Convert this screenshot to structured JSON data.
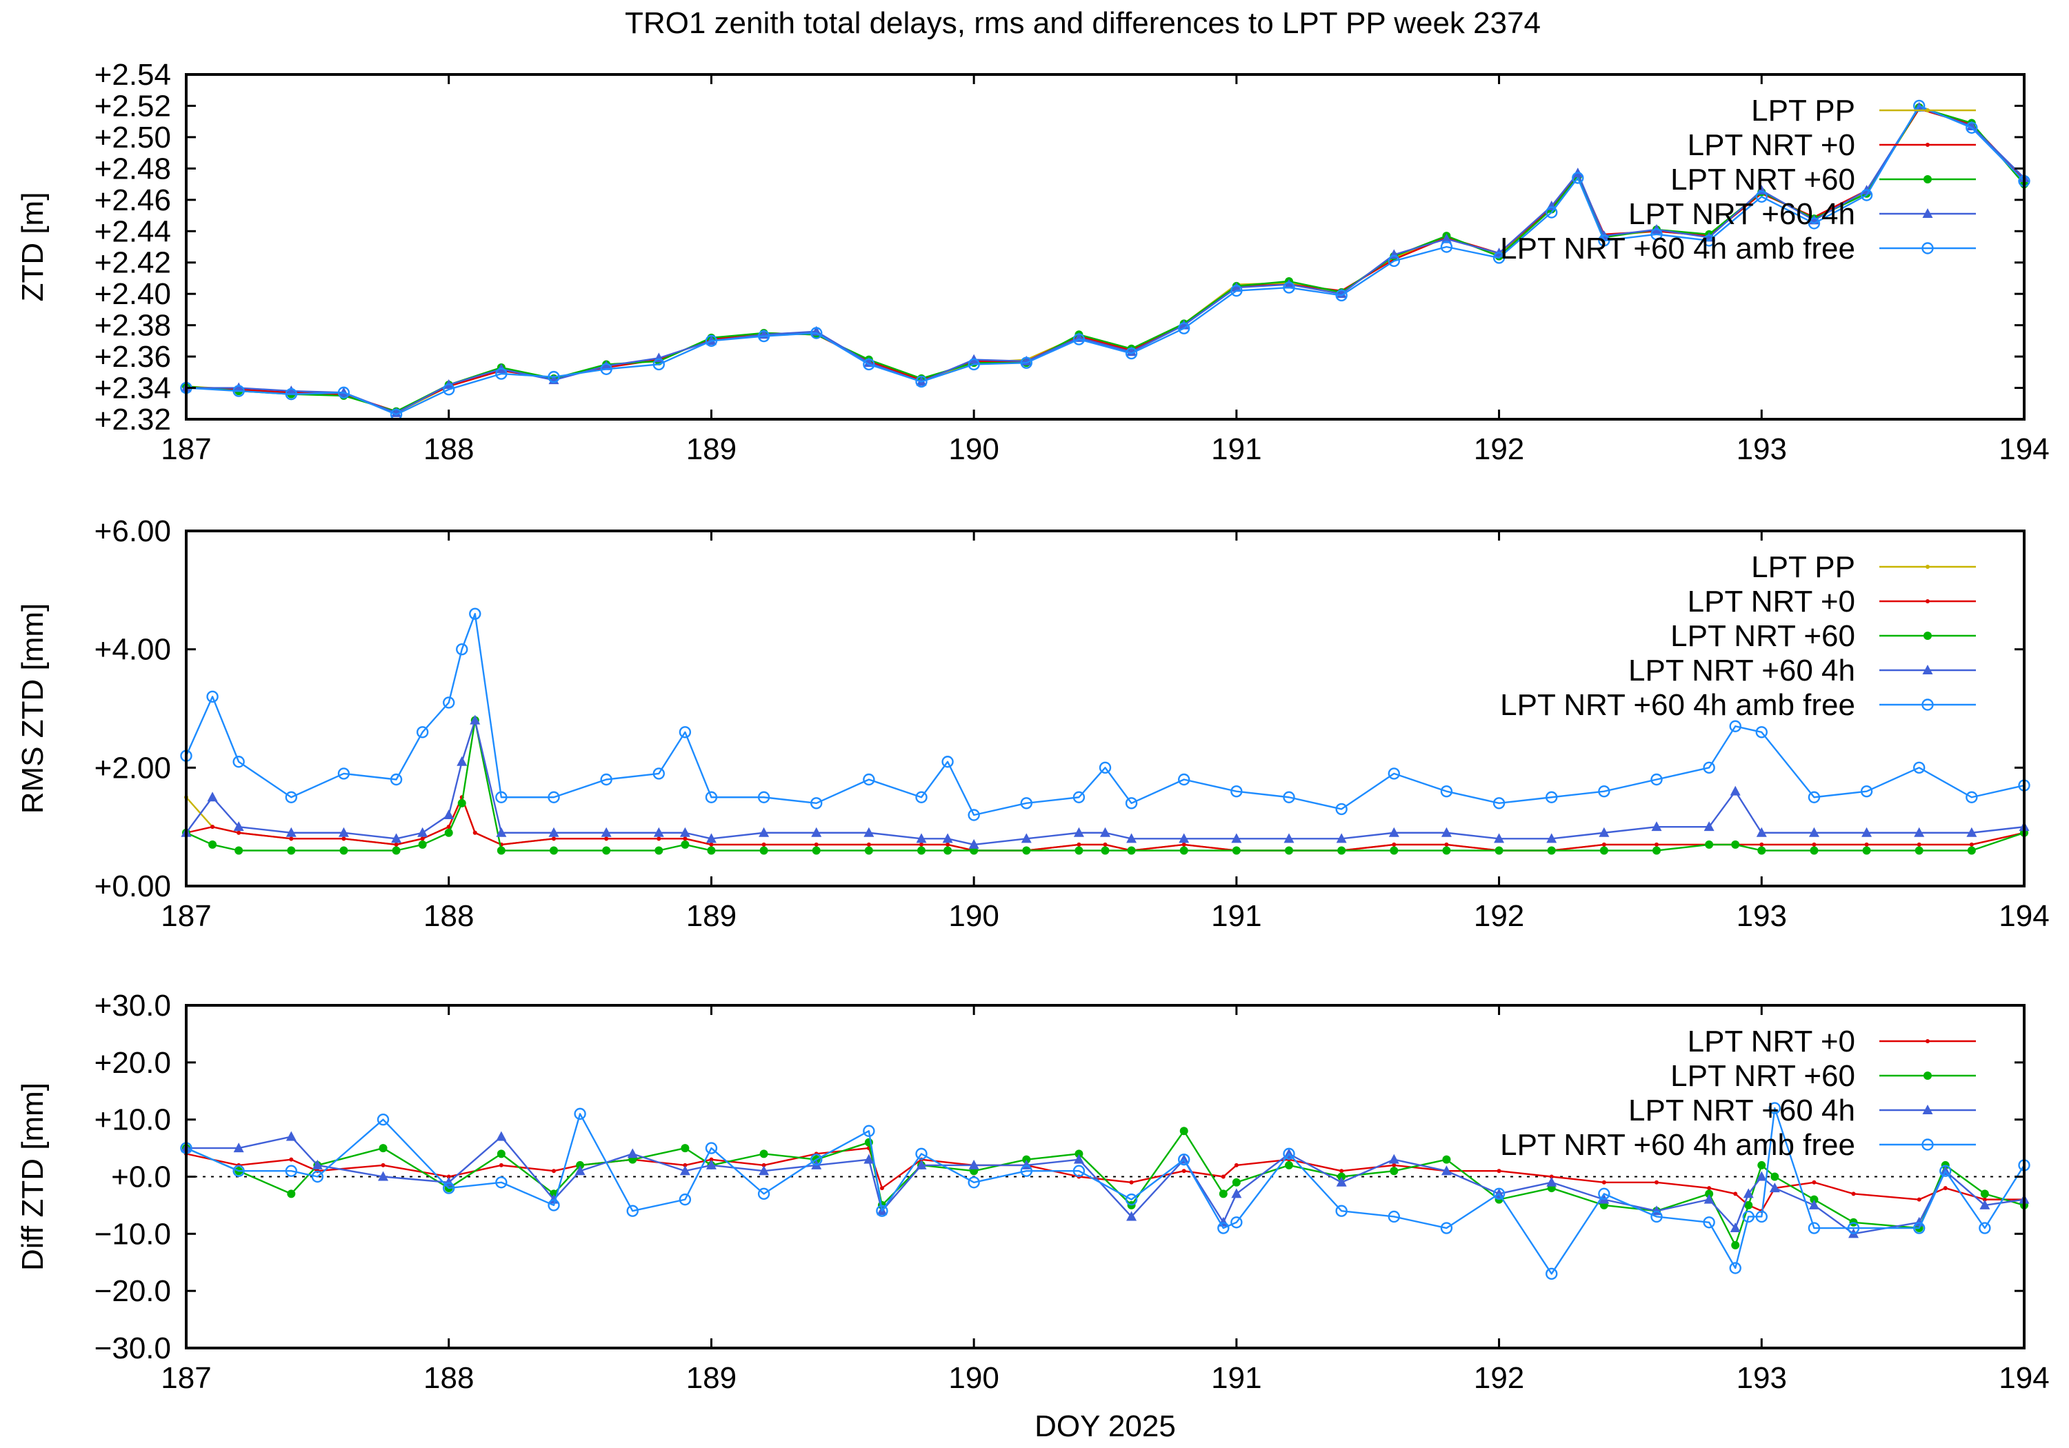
{
  "title": "TRO1 zenith total delays, rms and differences to LPT PP week 2374",
  "chart_data": [
    {
      "type": "line",
      "ylabel": "ZTD [m]",
      "xlabel": "",
      "xlim": [
        187,
        194
      ],
      "ylim": [
        2.32,
        2.54
      ],
      "xticks": [
        "187",
        "188",
        "189",
        "190",
        "191",
        "192",
        "193",
        "194"
      ],
      "yticks": [
        "+2.32",
        "+2.34",
        "+2.36",
        "+2.38",
        "+2.40",
        "+2.42",
        "+2.44",
        "+2.46",
        "+2.48",
        "+2.50",
        "+2.52",
        "+2.54"
      ],
      "legend_position": "top-right",
      "x": [
        187.0,
        187.2,
        187.4,
        187.6,
        187.8,
        188.0,
        188.2,
        188.4,
        188.6,
        188.8,
        189.0,
        189.2,
        189.4,
        189.6,
        189.8,
        190.0,
        190.2,
        190.4,
        190.6,
        190.8,
        191.0,
        191.2,
        191.4,
        191.6,
        191.8,
        192.0,
        192.2,
        192.3,
        192.4,
        192.6,
        192.8,
        193.0,
        193.2,
        193.4,
        193.6,
        193.8,
        194.0
      ],
      "series": [
        {
          "name": "LPT PP",
          "color": "#c8b400",
          "marker": "dot",
          "values": [
            2.341,
            2.339,
            2.337,
            2.336,
            2.324,
            2.341,
            2.352,
            2.346,
            2.354,
            2.358,
            2.371,
            2.374,
            2.375,
            2.356,
            2.345,
            2.356,
            2.358,
            2.373,
            2.363,
            2.381,
            2.406,
            2.407,
            2.401,
            2.423,
            2.436,
            2.425,
            2.455,
            2.476,
            2.437,
            2.44,
            2.437,
            2.465,
            2.448,
            2.465,
            2.518,
            2.508,
            2.473
          ]
        },
        {
          "name": "LPT NRT +0",
          "color": "#e00000",
          "marker": "dot",
          "values": [
            2.34,
            2.339,
            2.337,
            2.336,
            2.325,
            2.341,
            2.351,
            2.346,
            2.353,
            2.358,
            2.371,
            2.375,
            2.374,
            2.357,
            2.345,
            2.357,
            2.357,
            2.373,
            2.364,
            2.38,
            2.405,
            2.406,
            2.402,
            2.422,
            2.436,
            2.426,
            2.455,
            2.476,
            2.438,
            2.44,
            2.437,
            2.464,
            2.449,
            2.466,
            2.518,
            2.508,
            2.473
          ]
        },
        {
          "name": "LPT NRT +60",
          "color": "#00b400",
          "marker": "filled-circle",
          "values": [
            2.341,
            2.338,
            2.336,
            2.335,
            2.325,
            2.342,
            2.353,
            2.346,
            2.355,
            2.357,
            2.372,
            2.375,
            2.374,
            2.358,
            2.346,
            2.356,
            2.356,
            2.374,
            2.365,
            2.381,
            2.405,
            2.408,
            2.401,
            2.424,
            2.437,
            2.424,
            2.454,
            2.475,
            2.436,
            2.441,
            2.438,
            2.465,
            2.448,
            2.464,
            2.519,
            2.509,
            2.47
          ]
        },
        {
          "name": "LPT NRT +60 4h",
          "color": "#4060d8",
          "marker": "triangle",
          "values": [
            2.34,
            2.34,
            2.338,
            2.337,
            2.324,
            2.342,
            2.352,
            2.345,
            2.354,
            2.359,
            2.37,
            2.374,
            2.376,
            2.356,
            2.344,
            2.358,
            2.357,
            2.372,
            2.363,
            2.38,
            2.404,
            2.406,
            2.4,
            2.425,
            2.435,
            2.426,
            2.456,
            2.477,
            2.437,
            2.441,
            2.436,
            2.466,
            2.447,
            2.466,
            2.519,
            2.507,
            2.474
          ]
        },
        {
          "name": "LPT NRT +60 4h amb free",
          "color": "#1e8cff",
          "marker": "open-circle",
          "values": [
            2.34,
            2.338,
            2.336,
            2.337,
            2.323,
            2.339,
            2.349,
            2.347,
            2.352,
            2.355,
            2.37,
            2.373,
            2.375,
            2.355,
            2.344,
            2.355,
            2.356,
            2.371,
            2.362,
            2.378,
            2.402,
            2.404,
            2.399,
            2.421,
            2.43,
            2.423,
            2.452,
            2.474,
            2.434,
            2.438,
            2.434,
            2.462,
            2.445,
            2.463,
            2.52,
            2.506,
            2.472
          ]
        }
      ]
    },
    {
      "type": "line",
      "ylabel": "RMS ZTD [mm]",
      "xlabel": "",
      "xlim": [
        187,
        194
      ],
      "ylim": [
        0,
        6
      ],
      "xticks": [
        "187",
        "188",
        "189",
        "190",
        "191",
        "192",
        "193",
        "194"
      ],
      "yticks": [
        "+0.00",
        "+2.00",
        "+4.00",
        "+6.00"
      ],
      "legend_position": "top-right",
      "x": [
        187.0,
        187.1,
        187.2,
        187.4,
        187.6,
        187.8,
        187.9,
        188.0,
        188.05,
        188.1,
        188.2,
        188.4,
        188.6,
        188.8,
        188.9,
        189.0,
        189.2,
        189.4,
        189.6,
        189.8,
        189.9,
        190.0,
        190.2,
        190.4,
        190.5,
        190.6,
        190.8,
        191.0,
        191.2,
        191.4,
        191.6,
        191.8,
        192.0,
        192.2,
        192.4,
        192.6,
        192.8,
        192.9,
        193.0,
        193.2,
        193.4,
        193.6,
        193.8,
        194.0
      ],
      "series": [
        {
          "name": "LPT PP",
          "color": "#c8b400",
          "marker": "dot",
          "values": [
            1.5,
            1.0,
            0.9,
            0.8,
            0.8,
            0.7,
            0.8,
            1.0,
            1.5,
            0.9,
            0.7,
            0.8,
            0.8,
            0.8,
            0.8,
            0.7,
            0.7,
            0.7,
            0.7,
            0.7,
            0.7,
            0.6,
            0.6,
            0.7,
            0.7,
            0.6,
            0.7,
            0.6,
            0.6,
            0.6,
            0.7,
            0.7,
            0.6,
            0.6,
            0.7,
            0.7,
            0.7,
            0.7,
            0.7,
            0.7,
            0.7,
            0.7,
            0.7,
            0.9
          ]
        },
        {
          "name": "LPT NRT +0",
          "color": "#e00000",
          "marker": "dot",
          "values": [
            0.9,
            1.0,
            0.9,
            0.8,
            0.8,
            0.7,
            0.8,
            1.0,
            1.5,
            0.9,
            0.7,
            0.8,
            0.8,
            0.8,
            0.8,
            0.7,
            0.7,
            0.7,
            0.7,
            0.7,
            0.7,
            0.6,
            0.6,
            0.7,
            0.7,
            0.6,
            0.7,
            0.6,
            0.6,
            0.6,
            0.7,
            0.7,
            0.6,
            0.6,
            0.7,
            0.7,
            0.7,
            0.7,
            0.7,
            0.7,
            0.7,
            0.7,
            0.7,
            0.9
          ]
        },
        {
          "name": "LPT NRT +60",
          "color": "#00b400",
          "marker": "filled-circle",
          "values": [
            0.9,
            0.7,
            0.6,
            0.6,
            0.6,
            0.6,
            0.7,
            0.9,
            1.4,
            2.8,
            0.6,
            0.6,
            0.6,
            0.6,
            0.7,
            0.6,
            0.6,
            0.6,
            0.6,
            0.6,
            0.6,
            0.6,
            0.6,
            0.6,
            0.6,
            0.6,
            0.6,
            0.6,
            0.6,
            0.6,
            0.6,
            0.6,
            0.6,
            0.6,
            0.6,
            0.6,
            0.7,
            0.7,
            0.6,
            0.6,
            0.6,
            0.6,
            0.6,
            0.9
          ]
        },
        {
          "name": "LPT NRT +60 4h",
          "color": "#4060d8",
          "marker": "triangle",
          "values": [
            0.9,
            1.5,
            1.0,
            0.9,
            0.9,
            0.8,
            0.9,
            1.2,
            2.1,
            2.8,
            0.9,
            0.9,
            0.9,
            0.9,
            0.9,
            0.8,
            0.9,
            0.9,
            0.9,
            0.8,
            0.8,
            0.7,
            0.8,
            0.9,
            0.9,
            0.8,
            0.8,
            0.8,
            0.8,
            0.8,
            0.9,
            0.9,
            0.8,
            0.8,
            0.9,
            1.0,
            1.0,
            1.6,
            0.9,
            0.9,
            0.9,
            0.9,
            0.9,
            1.0
          ]
        },
        {
          "name": "LPT NRT +60 4h amb free",
          "color": "#1e8cff",
          "marker": "open-circle",
          "values": [
            2.2,
            3.2,
            2.1,
            1.5,
            1.9,
            1.8,
            2.6,
            3.1,
            4.0,
            4.6,
            1.5,
            1.5,
            1.8,
            1.9,
            2.6,
            1.5,
            1.5,
            1.4,
            1.8,
            1.5,
            2.1,
            1.2,
            1.4,
            1.5,
            2.0,
            1.4,
            1.8,
            1.6,
            1.5,
            1.3,
            1.9,
            1.6,
            1.4,
            1.5,
            1.6,
            1.8,
            2.0,
            2.7,
            2.6,
            1.5,
            1.6,
            2.0,
            1.5,
            1.7
          ]
        }
      ]
    },
    {
      "type": "line",
      "ylabel": "Diff ZTD [mm]",
      "xlabel": "DOY 2025",
      "xlim": [
        187,
        194
      ],
      "ylim": [
        -30,
        30
      ],
      "xticks": [
        "187",
        "188",
        "189",
        "190",
        "191",
        "192",
        "193",
        "194"
      ],
      "yticks": [
        "−30.0",
        "−20.0",
        "−10.0",
        "+0.0",
        "+10.0",
        "+20.0",
        "+30.0"
      ],
      "legend_position": "top-right",
      "x": [
        187.0,
        187.2,
        187.4,
        187.5,
        187.75,
        188.0,
        188.2,
        188.4,
        188.5,
        188.7,
        188.9,
        189.0,
        189.2,
        189.4,
        189.6,
        189.65,
        189.8,
        190.0,
        190.2,
        190.4,
        190.6,
        190.8,
        190.95,
        191.0,
        191.2,
        191.4,
        191.6,
        191.8,
        192.0,
        192.2,
        192.4,
        192.6,
        192.8,
        192.9,
        192.95,
        193.0,
        193.05,
        193.2,
        193.35,
        193.6,
        193.7,
        193.85,
        194.0
      ],
      "series": [
        {
          "name": "LPT NRT +0",
          "color": "#e00000",
          "marker": "dot",
          "values": [
            4.0,
            2.0,
            3.0,
            1.0,
            2.0,
            0.0,
            2.0,
            1.0,
            2.0,
            3.0,
            2.0,
            3.0,
            2.0,
            4.0,
            5.0,
            -2.0,
            3.0,
            2.0,
            2.0,
            0.0,
            -1.0,
            1.0,
            0.0,
            2.0,
            3.0,
            1.0,
            2.0,
            1.0,
            1.0,
            0.0,
            -1.0,
            -1.0,
            -2.0,
            -3.0,
            -5.0,
            -6.0,
            -2.0,
            -1.0,
            -3.0,
            -4.0,
            -2.0,
            -4.0,
            -4.0
          ]
        },
        {
          "name": "LPT NRT +60",
          "color": "#00b400",
          "marker": "filled-circle",
          "values": [
            5.0,
            1.0,
            -3.0,
            2.0,
            5.0,
            -2.0,
            4.0,
            -3.0,
            2.0,
            3.0,
            5.0,
            2.0,
            4.0,
            3.0,
            6.0,
            -5.0,
            2.0,
            1.0,
            3.0,
            4.0,
            -5.0,
            8.0,
            -3.0,
            -1.0,
            2.0,
            0.0,
            1.0,
            3.0,
            -4.0,
            -2.0,
            -5.0,
            -6.0,
            -3.0,
            -12.0,
            -5.0,
            2.0,
            0.0,
            -4.0,
            -8.0,
            -9.0,
            2.0,
            -3.0,
            -5.0
          ]
        },
        {
          "name": "LPT NRT +60 4h",
          "color": "#4060d8",
          "marker": "triangle",
          "values": [
            5.0,
            5.0,
            7.0,
            2.0,
            0.0,
            -1.0,
            7.0,
            -4.0,
            1.0,
            4.0,
            1.0,
            2.0,
            1.0,
            2.0,
            3.0,
            -6.0,
            2.0,
            2.0,
            2.0,
            3.0,
            -7.0,
            3.0,
            -8.0,
            -3.0,
            4.0,
            -1.0,
            3.0,
            1.0,
            -3.0,
            -1.0,
            -4.0,
            -6.0,
            -4.0,
            -9.0,
            -3.0,
            0.0,
            -2.0,
            -5.0,
            -10.0,
            -8.0,
            1.0,
            -5.0,
            -4.0
          ]
        },
        {
          "name": "LPT NRT +60 4h amb free",
          "color": "#1e8cff",
          "marker": "open-circle",
          "values": [
            5.0,
            1.0,
            1.0,
            0.0,
            10.0,
            -2.0,
            -1.0,
            -5.0,
            11.0,
            -6.0,
            -4.0,
            5.0,
            -3.0,
            3.0,
            8.0,
            -6.0,
            4.0,
            -1.0,
            1.0,
            1.0,
            -4.0,
            3.0,
            -9.0,
            -8.0,
            4.0,
            -6.0,
            -7.0,
            -9.0,
            -3.0,
            -17.0,
            -3.0,
            -7.0,
            -8.0,
            -16.0,
            -7.0,
            -7.0,
            12.0,
            -9.0,
            -9.0,
            -9.0,
            1.0,
            -9.0,
            2.0
          ]
        }
      ]
    }
  ]
}
